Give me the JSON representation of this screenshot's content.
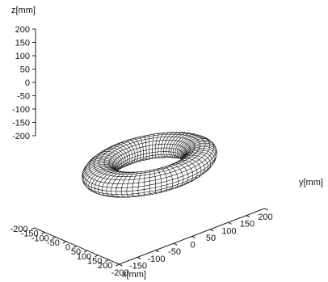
{
  "chart_data": {
    "type": "surface",
    "shape": "torus",
    "axis_labels": {
      "x": "x[mm]",
      "y": "y[mm]",
      "z": "z[mm]"
    },
    "x_range": [
      -200,
      200
    ],
    "y_range": [
      -200,
      200
    ],
    "z_range": [
      -200,
      200
    ],
    "x_ticks": [
      "-200",
      "-150",
      "-100",
      "-50",
      "0",
      "50",
      "100",
      "150",
      "200"
    ],
    "y_ticks": [
      "-200",
      "-150",
      "-100",
      "-50",
      "0",
      "50",
      "100",
      "150",
      "200"
    ],
    "z_ticks": [
      "200",
      "150",
      "100",
      "50",
      "0",
      "-50",
      "-100",
      "-150",
      "-200"
    ],
    "surface": {
      "major_radius": 120,
      "minor_radius": 40,
      "center": [
        0,
        0,
        0
      ],
      "toroidal_segments": 72,
      "poloidal_segments": 20
    },
    "grid": false
  }
}
